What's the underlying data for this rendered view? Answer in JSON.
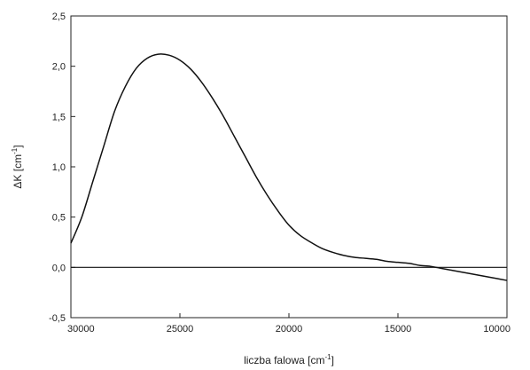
{
  "chart_data": {
    "type": "line",
    "title": "",
    "xlabel": "liczba falowa [cm",
    "xlabel_sup": "-1",
    "xlabel_end": "]",
    "ylabel": "ΔK [cm",
    "ylabel_sup": "-1",
    "ylabel_end": "]",
    "xlim": [
      30000,
      10000
    ],
    "x_reversed": true,
    "ylim": [
      -0.5,
      2.5
    ],
    "grid": false,
    "legend": "none",
    "x_ticks": [
      30000,
      25000,
      20000,
      15000,
      10000
    ],
    "x_tick_labels": [
      "30000",
      "25000",
      "20000",
      "15000",
      "10000"
    ],
    "y_ticks": [
      2.5,
      2.0,
      1.5,
      1.0,
      0.5,
      0.0,
      -0.5
    ],
    "y_tick_labels": [
      "2,5",
      "2,0",
      "1,5",
      "1,0",
      "0,5",
      "0,0",
      "-0,5"
    ],
    "reference_line_y": 0,
    "series": [
      {
        "color": "#111111",
        "x": [
          30000,
          29500,
          29000,
          28500,
          28000,
          27500,
          27000,
          26500,
          26000,
          25500,
          25000,
          24500,
          24000,
          23500,
          23000,
          22500,
          22000,
          21500,
          21000,
          20500,
          20000,
          19500,
          19000,
          18500,
          18000,
          17500,
          17000,
          16500,
          16000,
          15500,
          15000,
          14500,
          14000,
          13500,
          13000,
          12500,
          12000,
          11500,
          11000,
          10500,
          10000
        ],
        "y": [
          0.24,
          0.5,
          0.85,
          1.2,
          1.55,
          1.8,
          1.98,
          2.08,
          2.12,
          2.11,
          2.06,
          1.97,
          1.84,
          1.68,
          1.5,
          1.3,
          1.1,
          0.9,
          0.72,
          0.56,
          0.42,
          0.32,
          0.25,
          0.19,
          0.15,
          0.12,
          0.1,
          0.09,
          0.08,
          0.06,
          0.05,
          0.04,
          0.02,
          0.01,
          -0.01,
          -0.03,
          -0.05,
          -0.07,
          -0.09,
          -0.11,
          -0.13
        ]
      }
    ]
  }
}
